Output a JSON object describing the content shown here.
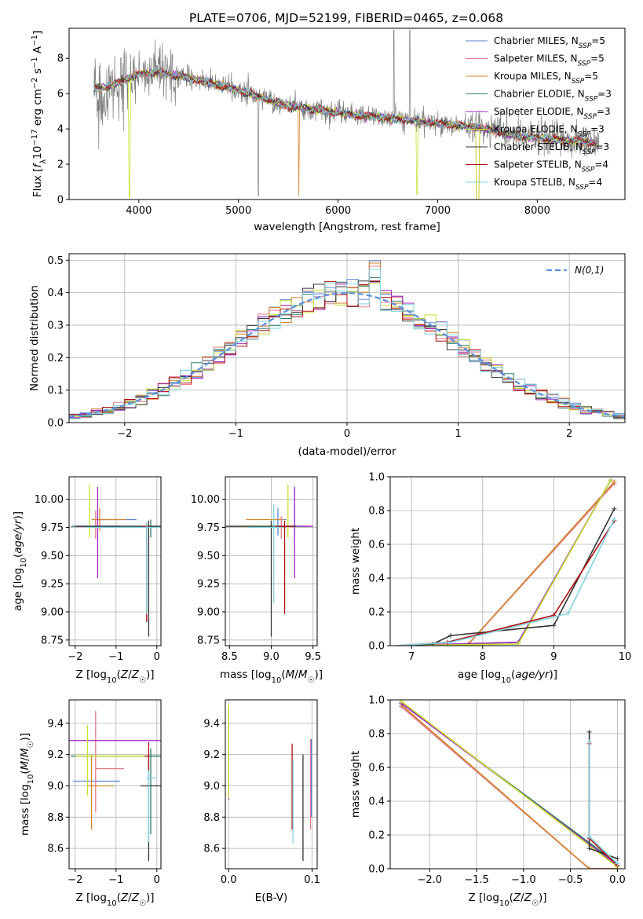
{
  "figure": {
    "title": "PLATE=0706, MJD=52199, FIBERID=0465, z=0.068"
  },
  "colors": {
    "Chabrier MILES": "#5b83d4",
    "Salpeter MILES": "#e87a8a",
    "Kroupa MILES": "#d6852c",
    "Chabrier ELODIE": "#2f7d6a",
    "Salpeter ELODIE": "#a020c0",
    "Kroupa ELODIE": "#c8e02e",
    "Chabrier STELIB": "#333333",
    "Salpeter STELIB": "#b01010",
    "Kroupa STELIB": "#7fd3e0",
    "data": "#808080",
    "normal": "#5b8ee0"
  },
  "chart_data": [
    {
      "id": "spectrum",
      "type": "line",
      "title": "PLATE=0706, MJD=52199, FIBERID=0465, z=0.068",
      "xlabel": "wavelength [Angstrom, rest frame]",
      "ylabel": "Flux [f_λ 10^-17 erg cm^-2 s^-1 A^-1]",
      "xlim": [
        3300,
        8880
      ],
      "ylim": [
        0,
        9.7
      ],
      "xticks": [
        4000,
        5000,
        6000,
        7000,
        8000
      ],
      "yticks": [
        0,
        2,
        4,
        6,
        8
      ],
      "legend": [
        "Chabrier MILES, N_SSP=5",
        "Salpeter MILES, N_SSP=5",
        "Kroupa MILES, N_SSP=5",
        "Chabrier ELODIE, N_SSP=3",
        "Salpeter ELODIE, N_SSP=3",
        "Kroupa ELODIE, N_SSP=3",
        "Chabrier STELIB, N_SSP=3",
        "Salpeter STELIB, N_SSP=4",
        "Kroupa STELIB, N_SSP=4"
      ],
      "legend_placement": "upper right",
      "model_continuum": {
        "x": [
          3550,
          3700,
          3850,
          4000,
          4200,
          4500,
          5000,
          5500,
          6000,
          6500,
          7000,
          7400,
          7800,
          8200,
          8600
        ],
        "y": [
          6.3,
          6.4,
          6.8,
          7.1,
          7.2,
          6.9,
          6.2,
          5.3,
          4.9,
          4.6,
          4.3,
          4.1,
          3.6,
          3.4,
          3.2
        ]
      },
      "grid": false
    },
    {
      "id": "residuals",
      "type": "histogram",
      "xlabel": "(data-model)/error",
      "ylabel": "Normed distribution",
      "xlim": [
        -2.5,
        2.5
      ],
      "ylim": [
        0,
        0.52
      ],
      "xticks": [
        -2,
        -1,
        0,
        1,
        2
      ],
      "yticks": [
        0.0,
        0.1,
        0.2,
        0.3,
        0.4,
        0.5
      ],
      "bins_left_edge": -2.5,
      "bin_width": 0.1,
      "reference_label": "N(0,1)",
      "grid": true
    },
    {
      "id": "age_vs_Z",
      "type": "errorbar",
      "xlabel": "Z [log10(Z/Z☉)]",
      "ylabel": "age [log10(age/yr)]",
      "xlim": [
        -2.15,
        0.1
      ],
      "ylim": [
        8.7,
        10.2
      ],
      "xticks": [
        -2,
        -1,
        0
      ],
      "yticks": [
        8.75,
        9.0,
        9.25,
        9.5,
        9.75,
        10.0
      ],
      "grid": true
    },
    {
      "id": "age_vs_mass",
      "type": "errorbar",
      "xlabel": "mass [log10(M/M☉)]",
      "xlim": [
        8.45,
        9.55
      ],
      "ylim": [
        8.7,
        10.2
      ],
      "xticks": [
        8.5,
        9.0,
        9.5
      ],
      "yticks": [
        8.75,
        9.0,
        9.25,
        9.5,
        9.75,
        10.0
      ],
      "grid": true
    },
    {
      "id": "cumulative_age",
      "type": "line",
      "xlabel": "age [log10(age/yr)]",
      "ylabel": "mass weight",
      "xlim": [
        6.7,
        10.0
      ],
      "ylim": [
        0,
        1.0
      ],
      "xticks": [
        7,
        8,
        9,
        10
      ],
      "yticks": [
        0.0,
        0.2,
        0.4,
        0.6,
        0.8,
        1.0
      ],
      "grid": true
    },
    {
      "id": "mass_vs_Z",
      "type": "errorbar",
      "xlabel": "Z [log10(Z/Z☉)]",
      "ylabel": "mass [log10(M/M☉)]",
      "xlim": [
        -2.15,
        0.1
      ],
      "ylim": [
        8.47,
        9.55
      ],
      "xticks": [
        -2,
        -1,
        0
      ],
      "yticks": [
        8.6,
        8.8,
        9.0,
        9.2,
        9.4
      ],
      "grid": true
    },
    {
      "id": "mass_vs_ebv",
      "type": "errorbar",
      "xlabel": "E(B-V)",
      "xlim": [
        -0.004,
        0.106
      ],
      "ylim": [
        8.47,
        9.55
      ],
      "xticks": [
        0.0,
        0.1
      ],
      "yticks": [
        8.6,
        8.8,
        9.0,
        9.2,
        9.4
      ],
      "grid": true
    },
    {
      "id": "cumulative_Z",
      "type": "line",
      "xlabel": "Z [log10(Z/Z☉)]",
      "ylabel": "mass weight",
      "xlim": [
        -2.42,
        0.08
      ],
      "ylim": [
        0,
        1.0
      ],
      "xticks": [
        -2.0,
        -1.5,
        -1.0,
        -0.5,
        0.0
      ],
      "yticks": [
        0.0,
        0.2,
        0.4,
        0.6,
        0.8,
        1.0
      ],
      "grid": true
    }
  ]
}
